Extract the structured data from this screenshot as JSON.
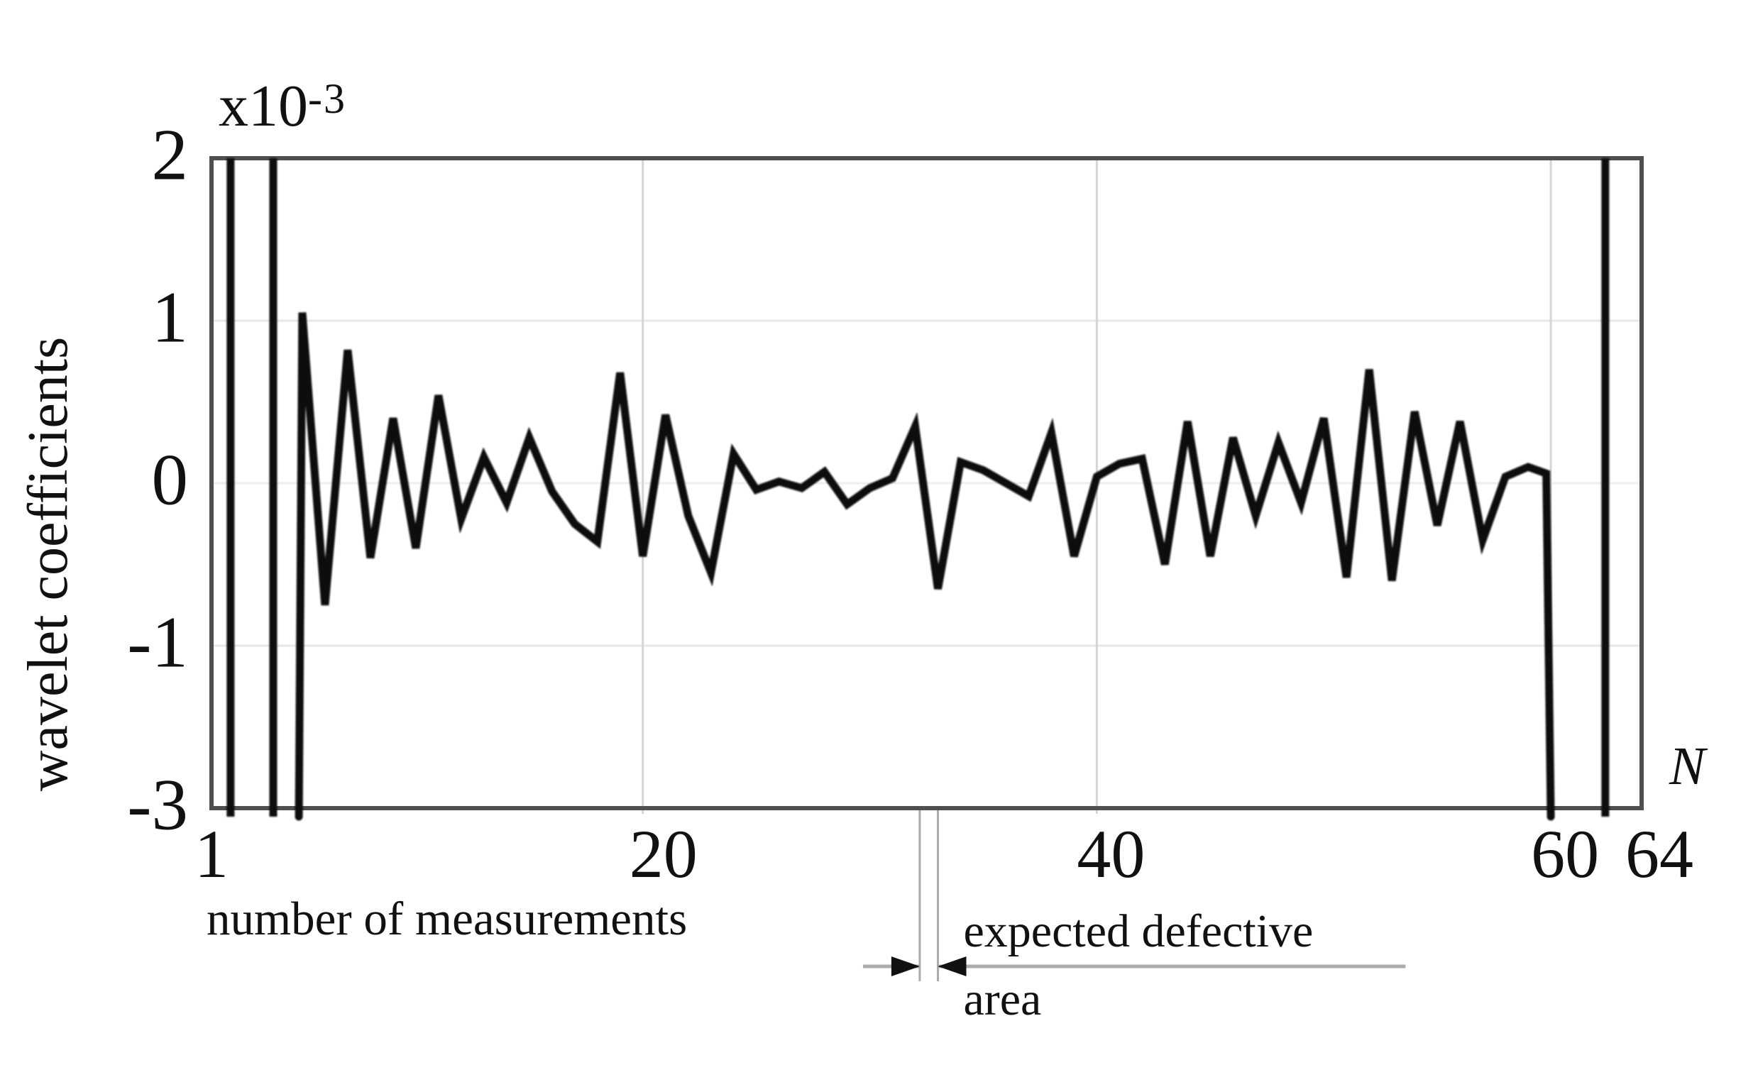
{
  "header": {
    "scale_label": "x10",
    "scale_exponent": "-3"
  },
  "colors": {
    "signal_line": "#0a0a0a",
    "plot_border": "#4f4f4f",
    "grid_vertical": "#d5d5d5",
    "grid_horizontal": "#e7e7e7",
    "grid_zero": "#efefef",
    "defect_marker": "#ababab",
    "arrow": "#111111",
    "text": "#111111"
  },
  "chart_data": {
    "type": "line",
    "title": "",
    "xlabel": "number of measurements",
    "ylabel": "wavelet coefficients",
    "x_end_label": "N",
    "y_scale_note": "x10^-3",
    "xlim": [
      1,
      64
    ],
    "ylim": [
      -3,
      2
    ],
    "xticks": [
      "1",
      "20",
      "40",
      "60",
      "64"
    ],
    "xtick_values": [
      1,
      20,
      40,
      60,
      64
    ],
    "yticks": [
      "2",
      "1",
      "0",
      "-1",
      "-3"
    ],
    "ytick_values": [
      2,
      1,
      0,
      -1,
      -3
    ],
    "ytick_note": "five tick labels evenly spaced; the -1 to -3 interval is compressed (2 units in one step)",
    "grid": true,
    "legend": null,
    "series": [
      {
        "name": "wavelet coefficients",
        "points": [
          [
            4.85,
            -3.2
          ],
          [
            5,
            1.05
          ],
          [
            6,
            -0.75
          ],
          [
            7,
            0.82
          ],
          [
            8,
            -0.46
          ],
          [
            9,
            0.4
          ],
          [
            10,
            -0.4
          ],
          [
            11,
            0.54
          ],
          [
            12,
            -0.22
          ],
          [
            13,
            0.16
          ],
          [
            14,
            -0.12
          ],
          [
            15,
            0.28
          ],
          [
            16,
            -0.05
          ],
          [
            17,
            -0.25
          ],
          [
            18,
            -0.36
          ],
          [
            19,
            0.68
          ],
          [
            20,
            -0.45
          ],
          [
            21,
            0.42
          ],
          [
            22,
            -0.2
          ],
          [
            23,
            -0.55
          ],
          [
            24,
            0.18
          ],
          [
            25,
            -0.04
          ],
          [
            26,
            0.01
          ],
          [
            27,
            -0.03
          ],
          [
            28,
            0.07
          ],
          [
            29,
            -0.13
          ],
          [
            30,
            -0.03
          ],
          [
            31,
            0.03
          ],
          [
            32,
            0.35
          ],
          [
            33,
            -0.65
          ],
          [
            34,
            0.13
          ],
          [
            35,
            0.08
          ],
          [
            36,
            0.0
          ],
          [
            37,
            -0.08
          ],
          [
            38,
            0.31
          ],
          [
            39,
            -0.45
          ],
          [
            40,
            0.04
          ],
          [
            41,
            0.12
          ],
          [
            42,
            0.15
          ],
          [
            43,
            -0.5
          ],
          [
            44,
            0.38
          ],
          [
            45,
            -0.45
          ],
          [
            46,
            0.28
          ],
          [
            47,
            -0.2
          ],
          [
            48,
            0.25
          ],
          [
            49,
            -0.12
          ],
          [
            50,
            0.4
          ],
          [
            51,
            -0.58
          ],
          [
            52,
            0.7
          ],
          [
            53,
            -0.6
          ],
          [
            54,
            0.44
          ],
          [
            55,
            -0.26
          ],
          [
            56,
            0.38
          ],
          [
            57,
            -0.35
          ],
          [
            58,
            0.04
          ],
          [
            59,
            0.1
          ],
          [
            59.8,
            0.06
          ],
          [
            60,
            -3.2
          ]
        ]
      }
    ],
    "clipped_vertical_lines_n": [
      1.84,
      3.72,
      62.4
    ],
    "off_scale_note": "signal rises from below the axis near N=5 and plunges below the axis at N=60; full-height vertical lines are clipped large boundary coefficients",
    "annotation": {
      "line1": "expected defective",
      "line2": "area",
      "n_start": 32.2,
      "n_end": 33.0,
      "n_line_left": 29.7,
      "n_line_right": 53.6
    }
  }
}
